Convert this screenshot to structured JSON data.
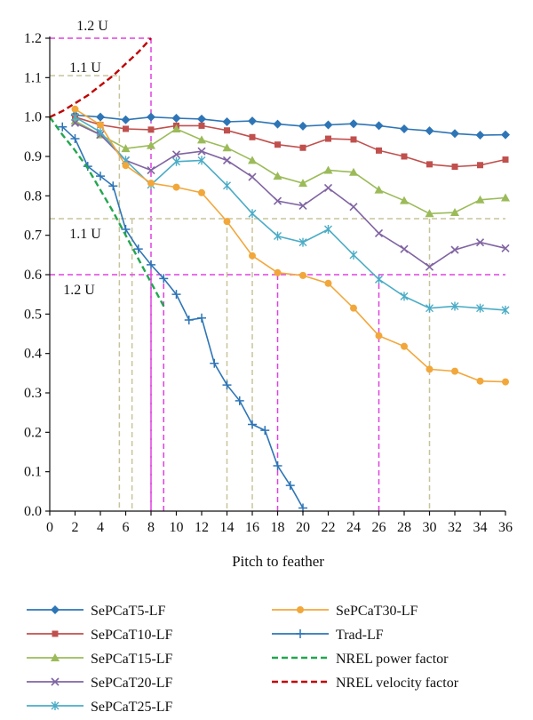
{
  "chart_data": {
    "type": "line",
    "title": "",
    "xlabel": "Pitch to feather",
    "ylabel": "",
    "xlim": [
      0,
      36
    ],
    "ylim": [
      0,
      1.2
    ],
    "xticks": [
      0,
      2,
      4,
      6,
      8,
      10,
      12,
      14,
      16,
      18,
      20,
      22,
      24,
      26,
      28,
      30,
      32,
      34,
      36
    ],
    "yticks": [
      0.0,
      0.1,
      0.2,
      0.3,
      0.4,
      0.5,
      0.6,
      0.7,
      0.8,
      0.9,
      1.0,
      1.1,
      1.2
    ],
    "grid": false,
    "legend_position": "bottom",
    "series": [
      {
        "name": "SePCaT5-LF",
        "color": "#2e75b6",
        "marker": "diamond",
        "x": [
          2,
          4,
          6,
          8,
          10,
          12,
          14,
          16,
          18,
          20,
          22,
          24,
          26,
          28,
          30,
          32,
          34,
          36
        ],
        "y": [
          1.005,
          1.0,
          0.993,
          1.0,
          0.997,
          0.995,
          0.988,
          0.99,
          0.982,
          0.977,
          0.98,
          0.983,
          0.978,
          0.97,
          0.965,
          0.958,
          0.954,
          0.955
        ]
      },
      {
        "name": "SePCaT10-LF",
        "color": "#c0504d",
        "marker": "square",
        "x": [
          2,
          4,
          6,
          8,
          10,
          12,
          14,
          16,
          18,
          20,
          22,
          24,
          26,
          28,
          30,
          32,
          34,
          36
        ],
        "y": [
          1.0,
          0.98,
          0.97,
          0.968,
          0.978,
          0.978,
          0.966,
          0.949,
          0.93,
          0.922,
          0.945,
          0.943,
          0.915,
          0.9,
          0.88,
          0.874,
          0.878,
          0.892
        ]
      },
      {
        "name": "SePCaT15-LF",
        "color": "#9bbb59",
        "marker": "triangle",
        "x": [
          2,
          4,
          6,
          8,
          10,
          12,
          14,
          16,
          18,
          20,
          22,
          24,
          26,
          28,
          30,
          32,
          34,
          36
        ],
        "y": [
          0.99,
          0.955,
          0.92,
          0.928,
          0.97,
          0.942,
          0.922,
          0.89,
          0.85,
          0.832,
          0.865,
          0.86,
          0.815,
          0.788,
          0.755,
          0.758,
          0.79,
          0.795
        ]
      },
      {
        "name": "SePCaT20-LF",
        "color": "#8064a2",
        "marker": "x",
        "x": [
          2,
          4,
          6,
          8,
          10,
          12,
          14,
          16,
          18,
          20,
          22,
          24,
          26,
          28,
          30,
          32,
          34,
          36
        ],
        "y": [
          0.985,
          0.955,
          0.89,
          0.865,
          0.905,
          0.913,
          0.89,
          0.848,
          0.787,
          0.775,
          0.82,
          0.772,
          0.705,
          0.665,
          0.62,
          0.663,
          0.682,
          0.667
        ]
      },
      {
        "name": "SePCaT25-LF",
        "color": "#4bacc6",
        "marker": "asterisk",
        "x": [
          2,
          4,
          6,
          8,
          10,
          12,
          14,
          16,
          18,
          20,
          22,
          24,
          26,
          28,
          30,
          32,
          34,
          36
        ],
        "y": [
          1.0,
          0.962,
          0.89,
          0.828,
          0.887,
          0.89,
          0.826,
          0.755,
          0.698,
          0.682,
          0.715,
          0.65,
          0.588,
          0.545,
          0.515,
          0.52,
          0.515,
          0.51
        ]
      },
      {
        "name": "SePCaT30-LF",
        "color": "#f2a73b",
        "marker": "circle",
        "x": [
          2,
          4,
          6,
          8,
          10,
          12,
          14,
          16,
          18,
          20,
          22,
          24,
          26,
          28,
          30,
          32,
          34,
          36
        ],
        "y": [
          1.02,
          0.98,
          0.877,
          0.832,
          0.822,
          0.808,
          0.735,
          0.648,
          0.605,
          0.598,
          0.578,
          0.515,
          0.445,
          0.418,
          0.36,
          0.355,
          0.33,
          0.328
        ]
      },
      {
        "name": "Trad-LF",
        "color": "#2e75b6",
        "marker": "plus",
        "x": [
          1,
          2,
          3,
          4,
          5,
          6,
          7,
          8,
          9,
          10,
          11,
          12,
          13,
          14,
          15,
          16,
          17,
          18,
          19,
          20
        ],
        "y": [
          0.975,
          0.945,
          0.875,
          0.85,
          0.825,
          0.715,
          0.665,
          0.625,
          0.59,
          0.55,
          0.485,
          0.49,
          0.375,
          0.32,
          0.28,
          0.22,
          0.205,
          0.115,
          0.065,
          0.008
        ]
      },
      {
        "name": "NREL power factor",
        "color": "#23a650",
        "marker": "none",
        "dash": true,
        "x": [
          0,
          1,
          2,
          3,
          4,
          5,
          6,
          7,
          8,
          9
        ],
        "y": [
          1.0,
          0.955,
          0.915,
          0.87,
          0.815,
          0.76,
          0.7,
          0.64,
          0.58,
          0.52
        ]
      },
      {
        "name": "NREL velocity factor",
        "color": "#c00000",
        "marker": "none",
        "dash": true,
        "x": [
          0,
          1,
          2,
          3,
          4,
          5,
          6,
          7,
          8
        ],
        "y": [
          1.0,
          1.015,
          1.035,
          1.055,
          1.08,
          1.105,
          1.135,
          1.165,
          1.2
        ]
      }
    ],
    "reference_lines": [
      {
        "label": "1.2 U",
        "color": "#e040e0",
        "y": 1.2,
        "x_end": 8,
        "x_drop": 8
      },
      {
        "label": "1.1 U",
        "color": "#c8c49a",
        "y": 1.105,
        "x_end": 5.5,
        "x_drop": 5.5
      },
      {
        "label": "1.1 U",
        "color": "#c8c49a",
        "y": 0.742,
        "x_end": 36,
        "x_drops": [
          6.5,
          14,
          16,
          30
        ]
      },
      {
        "label": "1.2 U",
        "color": "#e040e0",
        "y": 0.6,
        "x_end": 36,
        "x_drops": [
          8,
          9,
          18,
          26
        ]
      }
    ]
  }
}
